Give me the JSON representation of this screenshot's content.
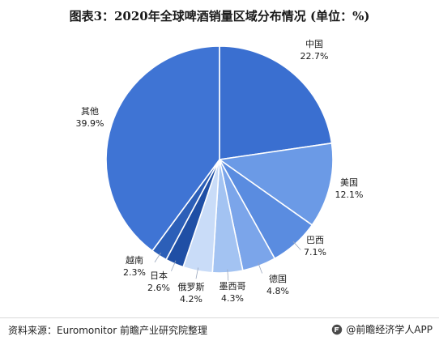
{
  "header": {
    "title": "图表3：2020年全球啤酒销量区域分布情况 (单位：%)"
  },
  "chart_data": {
    "type": "pie",
    "title": "图表3：2020年全球啤酒销量区域分布情况 (单位：%)",
    "unit": "%",
    "start_angle_deg": 90,
    "direction": "clockwise",
    "slices": [
      {
        "label": "中国",
        "value": 22.7,
        "display": "22.7%",
        "color": "#3a6fd0"
      },
      {
        "label": "美国",
        "value": 12.1,
        "display": "12.1%",
        "color": "#6b9ae6"
      },
      {
        "label": "巴西",
        "value": 7.1,
        "display": "7.1%",
        "color": "#5a8ce0"
      },
      {
        "label": "德国",
        "value": 4.8,
        "display": "4.8%",
        "color": "#7ba5ea"
      },
      {
        "label": "墨西哥",
        "value": 4.3,
        "display": "4.3%",
        "color": "#a3c3f2"
      },
      {
        "label": "俄罗斯",
        "value": 4.2,
        "display": "4.2%",
        "color": "#c9dcf8"
      },
      {
        "label": "日本",
        "value": 2.6,
        "display": "2.6%",
        "color": "#1f4fa5"
      },
      {
        "label": "越南",
        "value": 2.3,
        "display": "2.3%",
        "color": "#2c5fb8"
      },
      {
        "label": "其他",
        "value": 39.9,
        "display": "39.9%",
        "color": "#3f74d4"
      }
    ]
  },
  "footer": {
    "source": "资料来源：Euromonitor 前瞻产业研究院整理",
    "brand": "@前瞻经济学人APP"
  }
}
